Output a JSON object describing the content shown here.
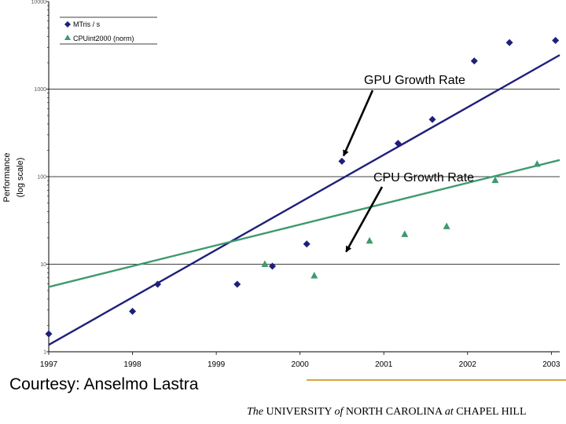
{
  "colors": {
    "gpu": "#1f1f7a",
    "cpu": "#3e9a6e",
    "footer_rule": "#d9a441",
    "grid": "#000000"
  },
  "chart_data": {
    "type": "scatter",
    "title": "",
    "ylabel_lines": [
      "Performance",
      "(log scale)"
    ],
    "xlabel": "",
    "x_ticks": [
      "1997",
      "1998",
      "1999",
      "2000",
      "2001",
      "2002",
      "2003"
    ],
    "xlim": [
      1997,
      2003.1
    ],
    "y_scale": "log",
    "ylim": [
      1,
      10000
    ],
    "y_ticks": [
      "1",
      "10",
      "100",
      "1000",
      "10000"
    ],
    "grid": "horizontal at major ticks",
    "legend": {
      "position": "top-left",
      "entries": [
        "MTris / s",
        "CPUint2000 (norm)"
      ]
    },
    "series": [
      {
        "name": "MTris / s",
        "marker": "diamond",
        "points": [
          [
            1997.0,
            1.6
          ],
          [
            1998.0,
            2.9
          ],
          [
            1998.3,
            5.9
          ],
          [
            1999.25,
            5.9
          ],
          [
            1999.67,
            9.5
          ],
          [
            2000.08,
            17
          ],
          [
            2000.5,
            150
          ],
          [
            2001.17,
            240
          ],
          [
            2001.58,
            450
          ],
          [
            2002.08,
            2100
          ],
          [
            2002.5,
            3400
          ],
          [
            2003.05,
            3600
          ]
        ],
        "trend": [
          [
            1997.0,
            1.2
          ],
          [
            2003.1,
            2450
          ]
        ]
      },
      {
        "name": "CPUint2000 (norm)",
        "marker": "triangle",
        "points": [
          [
            1999.58,
            10
          ],
          [
            2000.17,
            7.4
          ],
          [
            2000.83,
            18.5
          ],
          [
            2001.25,
            22
          ],
          [
            2001.75,
            27
          ],
          [
            2002.33,
            91
          ],
          [
            2002.83,
            139
          ]
        ],
        "trend": [
          [
            1997.0,
            5.5
          ],
          [
            2003.1,
            155
          ]
        ]
      }
    ],
    "annotations": [
      {
        "text": "GPU Growth Rate",
        "target": [
          2000.52,
          150
        ]
      },
      {
        "text": "CPU Growth Rate",
        "target": [
          2000.55,
          12
        ]
      }
    ]
  },
  "footer": {
    "credit": "Courtesy: Anselmo Lastra",
    "univ_the": "The",
    "univ_main": "UNIVERSITY",
    "univ_of": "of",
    "univ_nc": "NORTH CAROLINA",
    "univ_at": "at",
    "univ_ch": "CHAPEL HILL"
  }
}
